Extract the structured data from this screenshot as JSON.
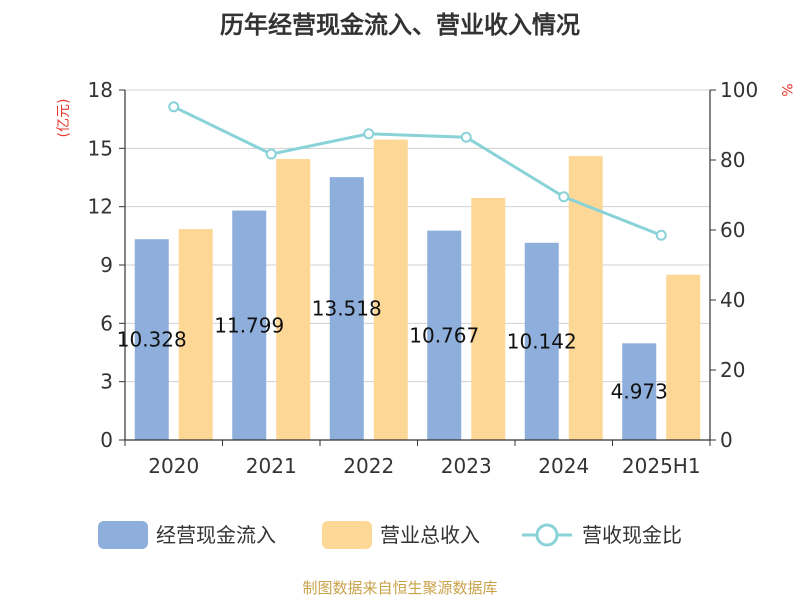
{
  "title": "历年经营现金流入、营业收入情况",
  "source": "制图数据来自恒生聚源数据库",
  "left_unit": "(亿元)",
  "right_unit": "%",
  "chart_data": {
    "type": "bar",
    "title": "历年经营现金流入、营业收入情况",
    "categories": [
      "2020",
      "2021",
      "2022",
      "2023",
      "2024",
      "2025H1"
    ],
    "series": [
      {
        "name": "经营现金流入",
        "type": "bar",
        "axis": "left",
        "color": "#8eaedb",
        "values": [
          10.328,
          11.799,
          13.518,
          10.767,
          10.142,
          4.973
        ],
        "labels": [
          "10.328",
          "11.799",
          "13.518",
          "10.767",
          "10.142",
          "4.973"
        ]
      },
      {
        "name": "营业总收入",
        "type": "bar",
        "axis": "left",
        "color": "#fdd796",
        "values": [
          10.85,
          14.45,
          15.45,
          12.45,
          14.6,
          8.5
        ]
      },
      {
        "name": "营收现金比",
        "type": "line",
        "axis": "right",
        "color": "#89d3d8",
        "values": [
          95.2,
          81.7,
          87.5,
          86.5,
          69.5,
          58.5
        ]
      }
    ],
    "y_left": {
      "unit": "(亿元)",
      "ylim": [
        0,
        18
      ],
      "ticks": [
        0,
        3,
        6,
        9,
        12,
        15,
        18
      ]
    },
    "y_right": {
      "unit": "%",
      "ylim": [
        0,
        100
      ],
      "ticks": [
        0,
        20,
        40,
        60,
        80,
        100
      ]
    },
    "grid": true,
    "legend_position": "bottom"
  }
}
